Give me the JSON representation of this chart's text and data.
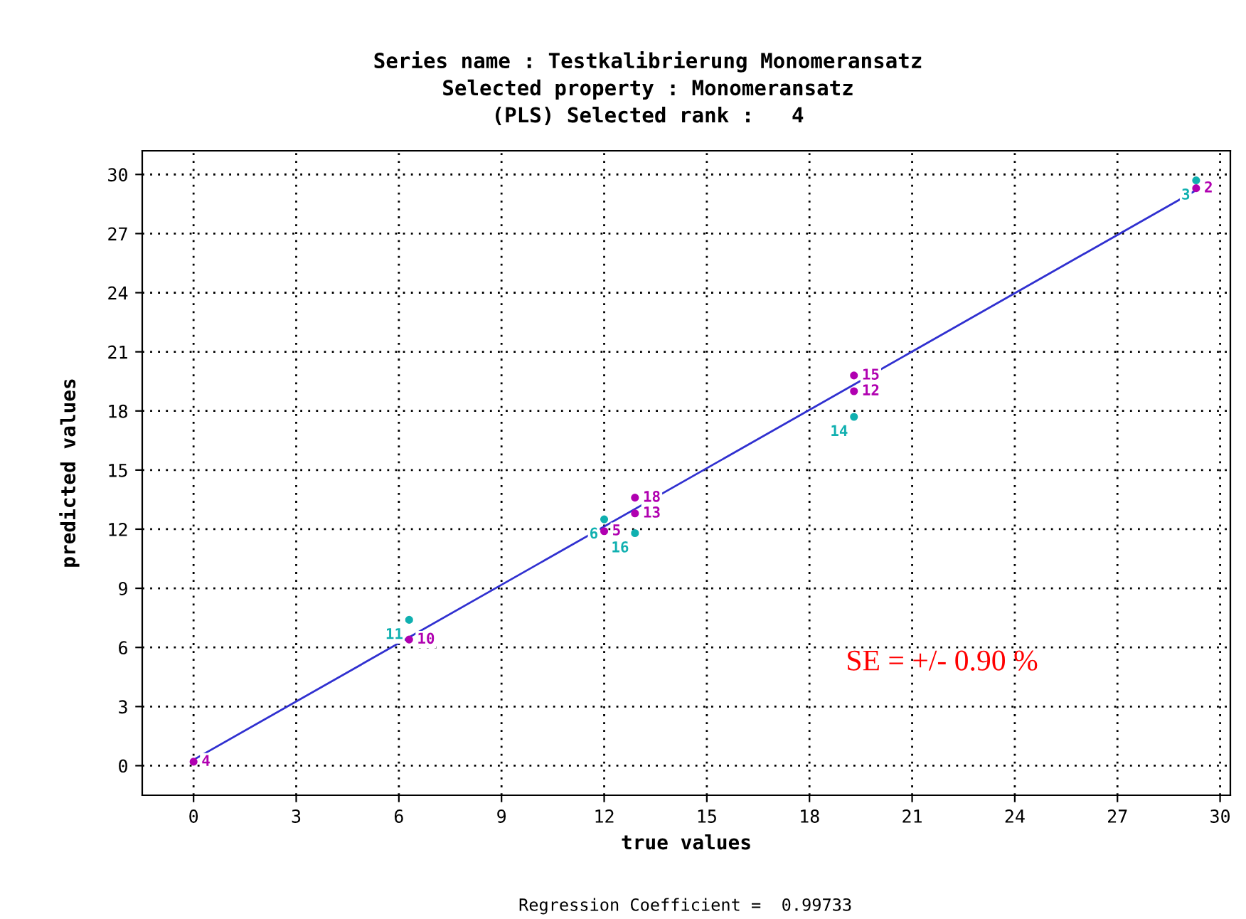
{
  "chart_data": {
    "type": "scatter",
    "subtitle": "Series name : Testkalibrierung Monomeransatz\nSelected property : Monomeransatz\n(PLS) Selected rank :   4",
    "xlabel": "true values",
    "ylabel": "predicted values",
    "xlim": [
      -1.5,
      30.3
    ],
    "ylim": [
      -1.5,
      31.2
    ],
    "xticks": [
      0,
      3,
      6,
      9,
      12,
      15,
      18,
      21,
      24,
      27,
      30
    ],
    "yticks": [
      0,
      3,
      6,
      9,
      12,
      15,
      18,
      21,
      24,
      27,
      30
    ],
    "grid": true,
    "marker": "circle",
    "series": [
      {
        "type": "line",
        "marker": "none",
        "color": "#3030d0",
        "x": [
          0,
          29.3
        ],
        "values": [
          0.3,
          29.2
        ]
      },
      {
        "color": "#b000b0",
        "x": [
          0,
          6.3,
          12,
          12.9,
          12.9,
          19.3,
          19.3,
          29.3
        ],
        "values": [
          0.2,
          6.4,
          11.9,
          13.6,
          12.8,
          19.8,
          19.0,
          29.3
        ]
      },
      {
        "color": "#10b0b0",
        "x": [
          6.3,
          12,
          12.9,
          19.3,
          29.3
        ],
        "values": [
          7.4,
          12.5,
          11.8,
          17.7,
          29.7
        ]
      }
    ],
    "annotations": [
      "SE = +/- 0.90 %",
      "Regression Coefficient =  0.99733",
      {
        "text": "4",
        "x": 0,
        "y": 0.2
      },
      {
        "text": "10",
        "x": 6.3,
        "y": 6.4
      },
      {
        "text": "5",
        "x": 12,
        "y": 11.9
      },
      {
        "text": "18",
        "x": 12.9,
        "y": 13.6
      },
      {
        "text": "13",
        "x": 12.9,
        "y": 12.8
      },
      {
        "text": "15",
        "x": 19.3,
        "y": 19.8
      },
      {
        "text": "12",
        "x": 19.3,
        "y": 19.0
      },
      {
        "text": "2",
        "x": 29.3,
        "y": 29.3
      },
      {
        "text": "11",
        "x": 6.3,
        "y": 7.4
      },
      {
        "text": "6",
        "x": 12,
        "y": 12.5
      },
      {
        "text": "16",
        "x": 12.9,
        "y": 11.8
      },
      {
        "text": "14",
        "x": 19.3,
        "y": 17.7
      },
      {
        "text": "3",
        "x": 29.3,
        "y": 29.7
      }
    ]
  }
}
